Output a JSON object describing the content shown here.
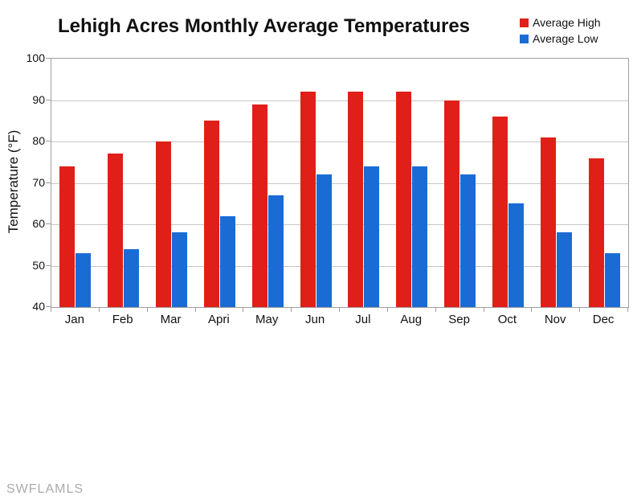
{
  "watermark": "SWFLAMLS",
  "chart_data": {
    "type": "bar",
    "title": "Lehigh Acres Monthly Average Temperatures",
    "xlabel": "",
    "ylabel": "Temperature (°F)",
    "categories": [
      "Jan",
      "Feb",
      "Mar",
      "Apri",
      "May",
      "Jun",
      "Jul",
      "Aug",
      "Sep",
      "Oct",
      "Nov",
      "Dec"
    ],
    "series": [
      {
        "name": "Average High",
        "color": "#e02018",
        "values": [
          74,
          77,
          80,
          85,
          89,
          92,
          92,
          92,
          90,
          86,
          81,
          76
        ]
      },
      {
        "name": "Average Low",
        "color": "#1b6bd4",
        "values": [
          53,
          54,
          58,
          62,
          67,
          72,
          74,
          74,
          72,
          65,
          58,
          53
        ]
      }
    ],
    "ylim": [
      40,
      100
    ],
    "yticks": [
      100,
      90,
      80,
      70,
      60,
      50,
      40
    ],
    "grid": "horizontal",
    "legend_position": "top-right",
    "axis_color": "#9e9e9e",
    "grid_color": "#c6c6c6"
  }
}
